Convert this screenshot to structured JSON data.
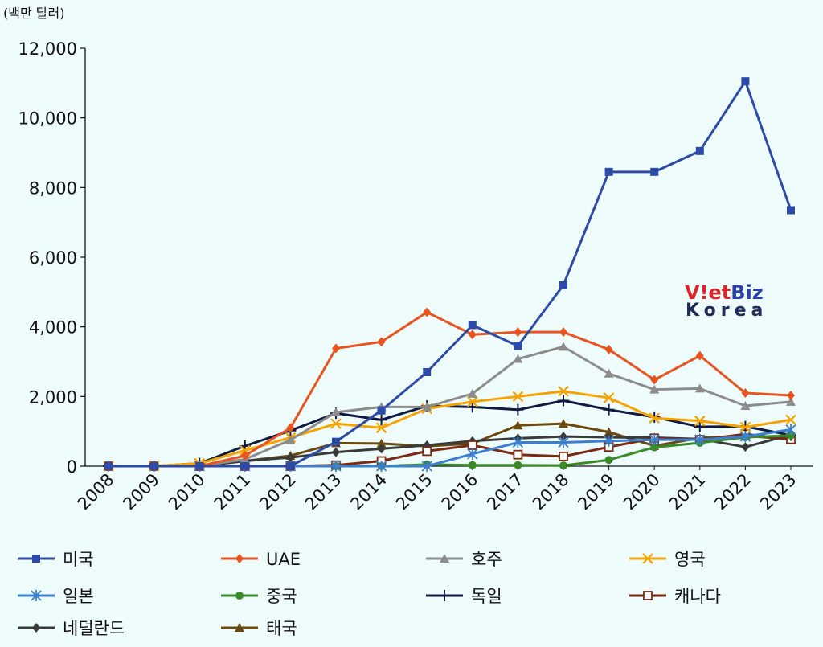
{
  "chart_data": {
    "type": "line",
    "unit_label": "(백만 달러)",
    "ylim": [
      0,
      12000
    ],
    "y_ticks": [
      "0",
      "2,000",
      "4,000",
      "6,000",
      "8,000",
      "10,000",
      "12,000"
    ],
    "y_tick_values": [
      0,
      2000,
      4000,
      6000,
      8000,
      10000,
      12000
    ],
    "categories": [
      "2008",
      "2009",
      "2010",
      "2011",
      "2012",
      "2013",
      "2014",
      "2015",
      "2016",
      "2017",
      "2018",
      "2019",
      "2020",
      "2021",
      "2022",
      "2023"
    ],
    "series": [
      {
        "name": "미국",
        "color": "#2e4aa8",
        "marker": "square",
        "values": [
          0,
          0,
          0,
          0,
          0,
          700,
          1600,
          2700,
          4050,
          3450,
          5200,
          8450,
          8450,
          9050,
          11050,
          7350
        ]
      },
      {
        "name": "UAE",
        "color": "#e8531f",
        "marker": "diamond",
        "values": [
          0,
          0,
          0,
          300,
          1100,
          3380,
          3570,
          4420,
          3780,
          3850,
          3850,
          3350,
          2480,
          3170,
          2100,
          2030
        ]
      },
      {
        "name": "호주",
        "color": "#8c8c8c",
        "marker": "triangle",
        "values": [
          0,
          0,
          0,
          200,
          750,
          1550,
          1700,
          1700,
          2080,
          3080,
          3430,
          2660,
          2200,
          2230,
          1730,
          1850
        ]
      },
      {
        "name": "영국",
        "color": "#f5a300",
        "marker": "x",
        "values": [
          0,
          0,
          80,
          450,
          820,
          1220,
          1100,
          1650,
          1850,
          2000,
          2150,
          1960,
          1380,
          1300,
          1120,
          1330
        ]
      },
      {
        "name": "일본",
        "color": "#3c7ecf",
        "marker": "asterisk",
        "values": [
          0,
          0,
          0,
          0,
          0,
          0,
          0,
          0,
          350,
          680,
          680,
          720,
          760,
          760,
          850,
          1050
        ]
      },
      {
        "name": "중국",
        "color": "#3a8a2a",
        "marker": "circle",
        "values": [
          0,
          0,
          0,
          0,
          0,
          0,
          0,
          50,
          30,
          30,
          20,
          180,
          540,
          670,
          830,
          880
        ]
      },
      {
        "name": "독일",
        "color": "#101a40",
        "marker": "plus",
        "values": [
          0,
          0,
          80,
          580,
          1020,
          1520,
          1330,
          1730,
          1700,
          1620,
          1880,
          1620,
          1410,
          1130,
          1140,
          890
        ]
      },
      {
        "name": "캐나다",
        "color": "#7a2a12",
        "marker": "open-square",
        "values": [
          0,
          0,
          0,
          0,
          0,
          30,
          150,
          430,
          600,
          330,
          280,
          550,
          800,
          760,
          920,
          770
        ]
      },
      {
        "name": "네덜란드",
        "color": "#3a3a3a",
        "marker": "diamond",
        "values": [
          0,
          0,
          0,
          150,
          250,
          400,
          500,
          600,
          720,
          800,
          850,
          830,
          820,
          780,
          550,
          900
        ]
      },
      {
        "name": "태국",
        "color": "#6b4a0f",
        "marker": "triangle",
        "values": [
          0,
          0,
          0,
          150,
          300,
          660,
          650,
          570,
          650,
          1170,
          1220,
          980,
          580,
          810,
          870,
          770
        ]
      }
    ]
  },
  "logo": {
    "line1_a": "V",
    "line1_b": "!et",
    "line1_c": "Biz",
    "line2": "Korea"
  }
}
